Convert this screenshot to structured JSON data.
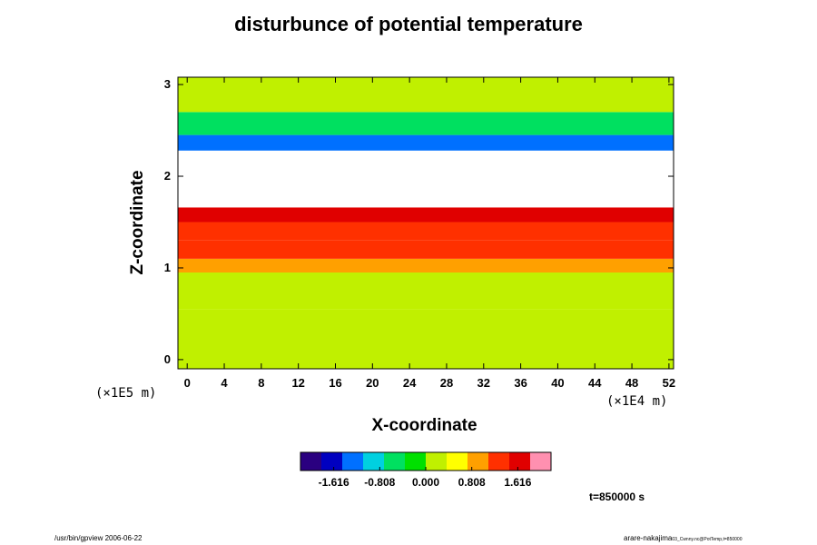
{
  "chart_data": {
    "type": "heatmap",
    "title": "disturbunce of potential temperature",
    "xlabel": "X-coordinate",
    "ylabel": "Z-coordinate",
    "x_unit": "(×1E4 m)",
    "y_unit": "(×1E5 m)",
    "xlim": [
      -1.0,
      52.5
    ],
    "ylim": [
      -0.1,
      3.08
    ],
    "x_ticks": [
      "0",
      "4",
      "8",
      "12",
      "16",
      "20",
      "24",
      "28",
      "32",
      "36",
      "40",
      "44",
      "48",
      "52"
    ],
    "y_ticks": [
      "0",
      "1",
      "2",
      "3"
    ],
    "colorbar": {
      "min": -2.2,
      "max": 2.2,
      "labels": [
        "-1.616",
        "-0.808",
        "0.000",
        "0.808",
        "1.616"
      ],
      "colors": [
        "#2a0080",
        "#0000c0",
        "#0070ff",
        "#00d0e0",
        "#00e060",
        "#00e000",
        "#c0f000",
        "#ffff00",
        "#ffa000",
        "#ff3000",
        "#e00000",
        "#ff90b0"
      ]
    },
    "field_bands": [
      {
        "z0": -0.1,
        "z1": 0.55,
        "value": 0.05
      },
      {
        "z0": 0.55,
        "z1": 0.95,
        "value": 0.0
      },
      {
        "z0": 0.95,
        "z1": 1.1,
        "value": 0.75
      },
      {
        "z0": 1.1,
        "z1": 1.3,
        "value": 1.1
      },
      {
        "z0": 1.3,
        "z1": 1.5,
        "value": 1.35
      },
      {
        "z0": 1.5,
        "z1": 1.66,
        "value": 1.8
      },
      {
        "z0": 1.66,
        "z1": 2.28,
        "value": 9
      },
      {
        "z0": 2.28,
        "z1": 2.45,
        "value": -1.4
      },
      {
        "z0": 2.45,
        "z1": 2.7,
        "value": -0.5
      },
      {
        "z0": 2.7,
        "z1": 3.08,
        "value": 0.1
      }
    ],
    "annotation": "t=850000 s"
  },
  "footer": {
    "left": "/usr/bin/gpview 2006-06-22",
    "right": "arare-nakajima",
    "right_sub": "03_Cwnny.nc@PotTemp,t=850000"
  }
}
